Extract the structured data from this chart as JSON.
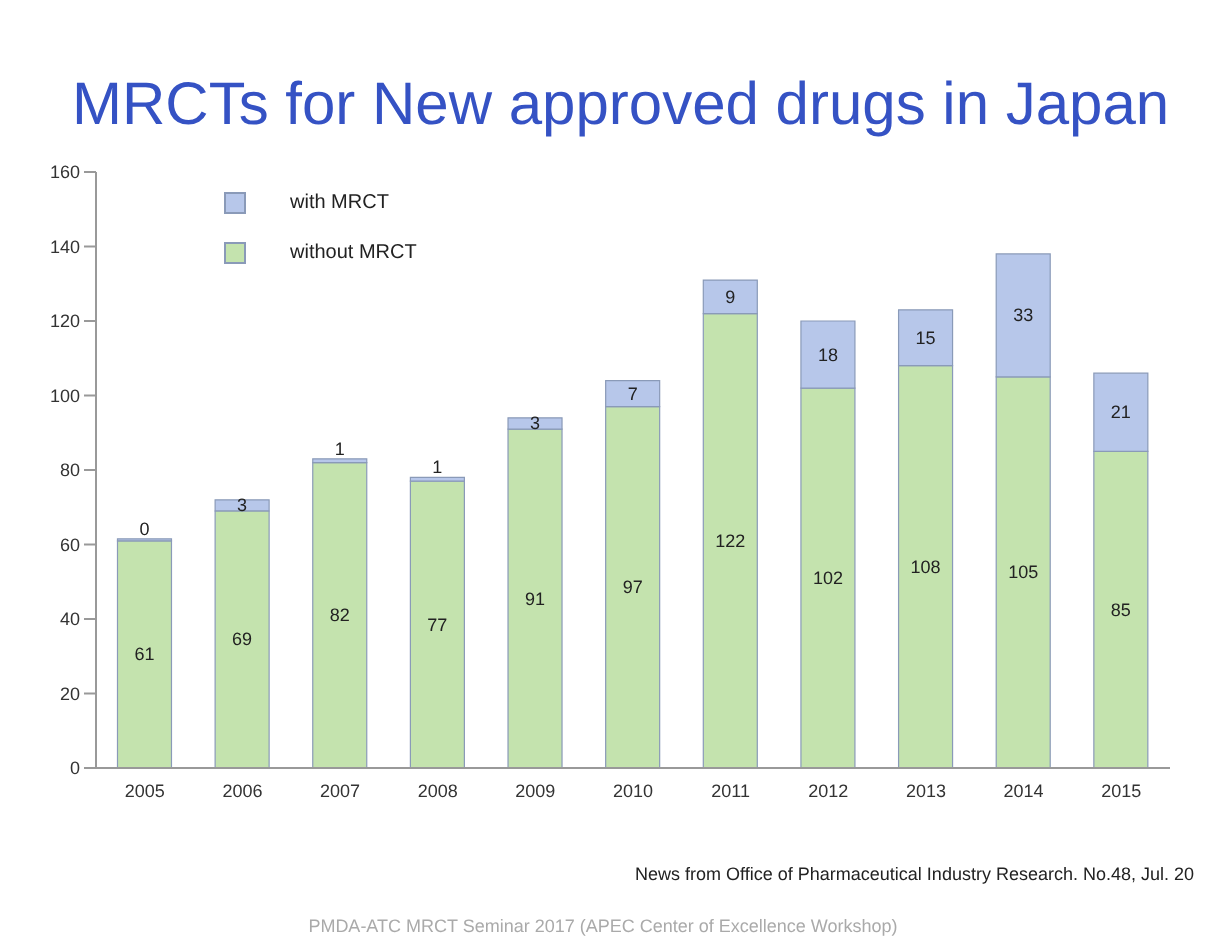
{
  "chart_data": {
    "type": "bar",
    "title": "MRCTs for New approved drugs in Japan",
    "categories": [
      "2005",
      "2006",
      "2007",
      "2008",
      "2009",
      "2010",
      "2011",
      "2012",
      "2013",
      "2014",
      "2015"
    ],
    "series": [
      {
        "name": "without MRCT",
        "color": "#c4e3ae",
        "values": [
          61,
          69,
          82,
          77,
          91,
          97,
          122,
          102,
          108,
          105,
          85
        ]
      },
      {
        "name": "with MRCT",
        "color": "#b7c7ea",
        "values": [
          0,
          3,
          1,
          1,
          3,
          7,
          9,
          18,
          15,
          33,
          21
        ]
      }
    ],
    "stacked": true,
    "data_labels": true,
    "ylim": [
      0,
      160
    ],
    "yticks": [
      0,
      20,
      40,
      60,
      80,
      100,
      120,
      140,
      160
    ],
    "grid": false,
    "legend": "top left",
    "annotations": [
      "News from Office of Pharmaceutical Industry Research. No.48, Jul. 20",
      "PMDA-ATC MRCT Seminar 2017 (APEC Center of Excellence Workshop)"
    ]
  }
}
